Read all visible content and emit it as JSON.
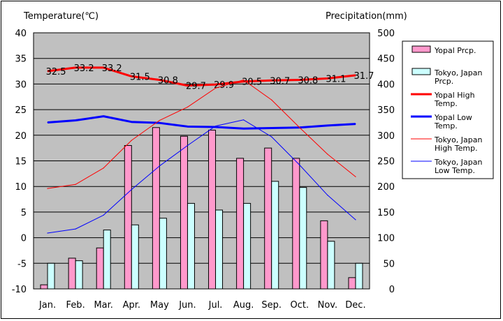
{
  "chart_data": {
    "type": "bar",
    "left_axis_title": "Temperature(℃)",
    "right_axis_title": "Precipitation(mm)",
    "categories": [
      "Jan.",
      "Feb.",
      "Mar.",
      "Apr.",
      "May",
      "Jun.",
      "Jul.",
      "Aug.",
      "Sep.",
      "Oct.",
      "Nov.",
      "Dec."
    ],
    "y_left": {
      "min": -10,
      "max": 40,
      "ticks": [
        "40",
        "35",
        "30",
        "25",
        "20",
        "15",
        "10",
        "5",
        "0",
        "-5",
        "-10"
      ]
    },
    "y_right": {
      "min": 0,
      "max": 500,
      "ticks": [
        "500",
        "450",
        "400",
        "350",
        "300",
        "250",
        "200",
        "150",
        "100",
        "50",
        "0"
      ]
    },
    "grid": true,
    "legend_position": "right",
    "series": [
      {
        "name": "Yopal Prcp.",
        "kind": "bar",
        "axis": "right",
        "color": "#ff99cc",
        "values": [
          8,
          60,
          80,
          280,
          315,
          298,
          310,
          255,
          275,
          255,
          133,
          22
        ]
      },
      {
        "name": "Tokyo, Japan Prcp.",
        "kind": "bar",
        "axis": "right",
        "color": "#ccffff",
        "values": [
          50,
          55,
          115,
          125,
          138,
          167,
          154,
          167,
          210,
          198,
          93,
          50
        ]
      },
      {
        "name": "Yopal High Temp.",
        "kind": "line",
        "axis": "left",
        "color": "#ff0000",
        "width": 3,
        "values": [
          32.5,
          33.2,
          33.2,
          31.5,
          30.8,
          29.7,
          29.9,
          30.5,
          30.7,
          30.8,
          31.1,
          31.7
        ],
        "labels": [
          "32.5",
          "33.2",
          "33.2",
          "31.5",
          "30.8",
          "29.7",
          "29.9",
          "30.5",
          "30.7",
          "30.8",
          "31.1",
          "31.7"
        ]
      },
      {
        "name": "Yopal Low Temp.",
        "kind": "line",
        "axis": "left",
        "color": "#0000ff",
        "width": 3,
        "values": [
          22.5,
          22.9,
          23.7,
          22.6,
          22.4,
          21.7,
          21.6,
          21.3,
          21.4,
          21.5,
          21.9,
          22.2
        ]
      },
      {
        "name": "Tokyo, Japan High Temp.",
        "kind": "line",
        "axis": "left",
        "color": "#ff0000",
        "width": 1,
        "values": [
          9.6,
          10.4,
          13.6,
          19.0,
          22.9,
          25.5,
          29.2,
          30.8,
          26.9,
          21.5,
          16.3,
          11.9
        ]
      },
      {
        "name": "Tokyo, Japan Low Temp.",
        "kind": "line",
        "axis": "left",
        "color": "#0000ff",
        "width": 1,
        "values": [
          0.9,
          1.7,
          4.4,
          9.4,
          14.0,
          18.0,
          21.8,
          23.0,
          19.7,
          14.2,
          8.3,
          3.5
        ]
      }
    ],
    "legend": [
      {
        "kind": "bar",
        "color": "#ff99cc",
        "lines": [
          "Yopal Prcp."
        ]
      },
      {
        "kind": "bar",
        "color": "#ccffff",
        "lines": [
          "Tokyo, Japan",
          "Prcp."
        ]
      },
      {
        "kind": "line",
        "color": "#ff0000",
        "width": 3,
        "lines": [
          "Yopal High",
          "Temp."
        ]
      },
      {
        "kind": "line",
        "color": "#0000ff",
        "width": 3,
        "lines": [
          "Yopal Low",
          "Temp."
        ]
      },
      {
        "kind": "line",
        "color": "#ff0000",
        "width": 1,
        "lines": [
          "Tokyo, Japan",
          "High Temp."
        ]
      },
      {
        "kind": "line",
        "color": "#0000ff",
        "width": 1,
        "lines": [
          "Tokyo, Japan",
          "Low Temp."
        ]
      }
    ],
    "plot_background": "#c0c0c0"
  }
}
